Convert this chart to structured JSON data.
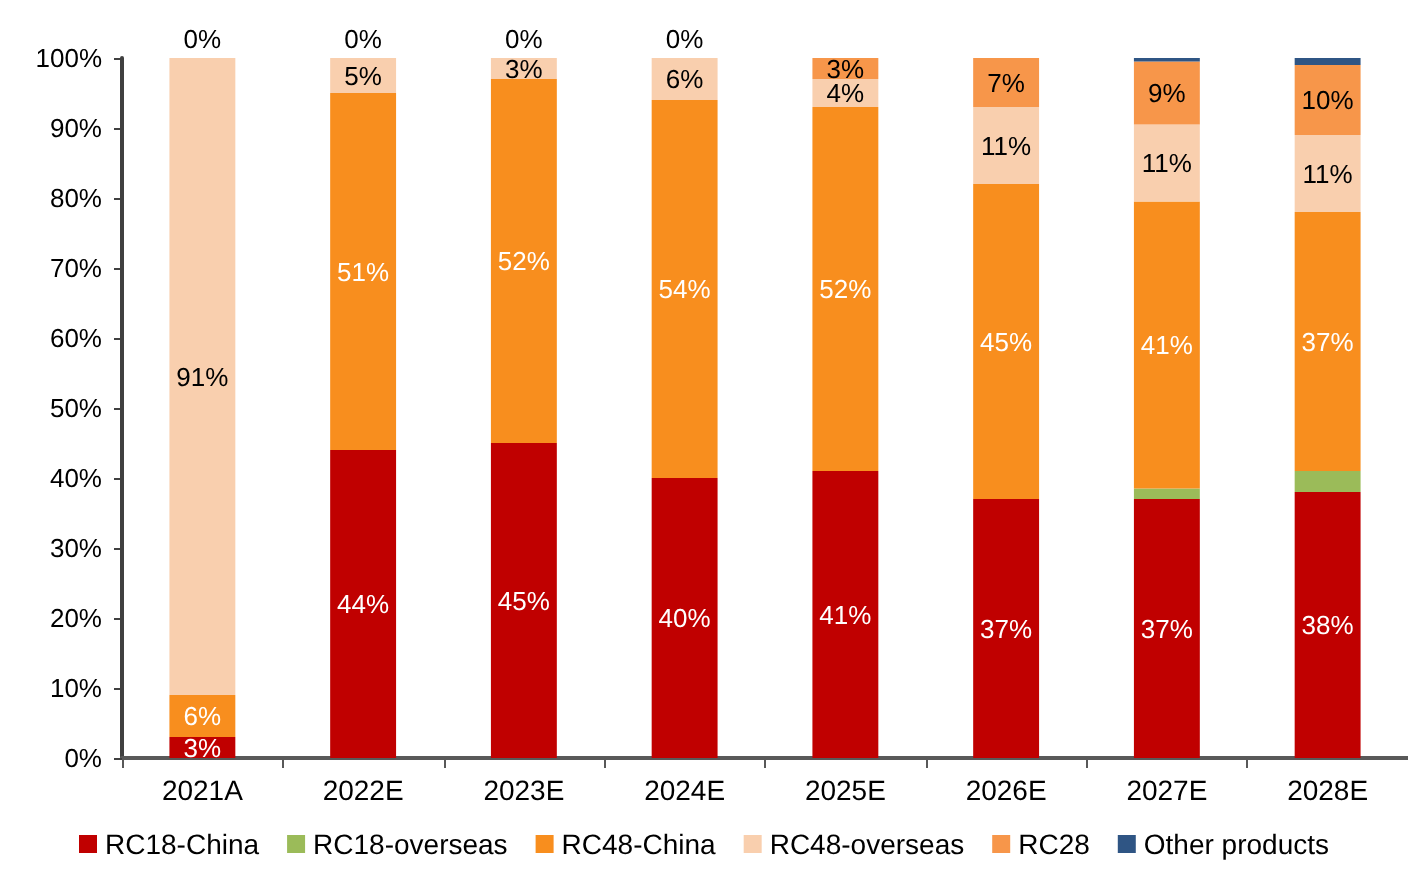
{
  "chart_data": {
    "type": "bar",
    "stacked": true,
    "legend": "bottom",
    "categories": [
      "2021A",
      "2022E",
      "2023E",
      "2024E",
      "2025E",
      "2026E",
      "2027E",
      "2028E"
    ],
    "series": [
      {
        "name": "RC18-China",
        "color": "#c00000",
        "values": [
          3,
          44,
          45,
          40,
          41,
          37,
          37,
          38
        ],
        "value_labels": [
          "3%",
          "44%",
          "45%",
          "40%",
          "41%",
          "37%",
          "37%",
          "38%"
        ]
      },
      {
        "name": "RC18-overseas",
        "color": "#9bbb59",
        "values": [
          0,
          0,
          0,
          0,
          0,
          0,
          1.5,
          3
        ]
      },
      {
        "name": "RC48-China",
        "color": "#f88e1e",
        "values": [
          6,
          51,
          52,
          54,
          52,
          45,
          41,
          37
        ],
        "value_labels": [
          "6%",
          "51%",
          "52%",
          "54%",
          "52%",
          "45%",
          "41%",
          "37%"
        ]
      },
      {
        "name": "RC48-overseas",
        "color": "#f9cfae",
        "values": [
          91,
          5,
          3,
          6,
          4,
          11,
          11,
          11
        ],
        "value_labels": [
          "91%",
          "5%",
          "3%",
          "6%",
          "4%",
          "11%",
          "11%",
          "11%"
        ]
      },
      {
        "name": "RC28",
        "color": "#f7964a",
        "values": [
          0,
          0,
          0,
          0,
          3,
          7,
          9,
          10
        ],
        "value_labels": [
          "0%",
          "0%",
          "0%",
          "0%",
          "3%",
          "7%",
          "9%",
          "10%"
        ]
      },
      {
        "name": "Other products",
        "color": "#2f5584",
        "values": [
          0,
          0,
          0,
          0,
          0,
          0,
          0.5,
          1
        ]
      }
    ],
    "ylim": [
      0,
      100
    ],
    "yticks": [
      {
        "value": 0,
        "label": "0%"
      },
      {
        "value": 10,
        "label": "10%"
      },
      {
        "value": 20,
        "label": "20%"
      },
      {
        "value": 30,
        "label": "30%"
      },
      {
        "value": 40,
        "label": "40%"
      },
      {
        "value": 50,
        "label": "50%"
      },
      {
        "value": 60,
        "label": "60%"
      },
      {
        "value": 70,
        "label": "70%"
      },
      {
        "value": 80,
        "label": "80%"
      },
      {
        "value": 90,
        "label": "90%"
      },
      {
        "value": 100,
        "label": "100%"
      }
    ]
  }
}
